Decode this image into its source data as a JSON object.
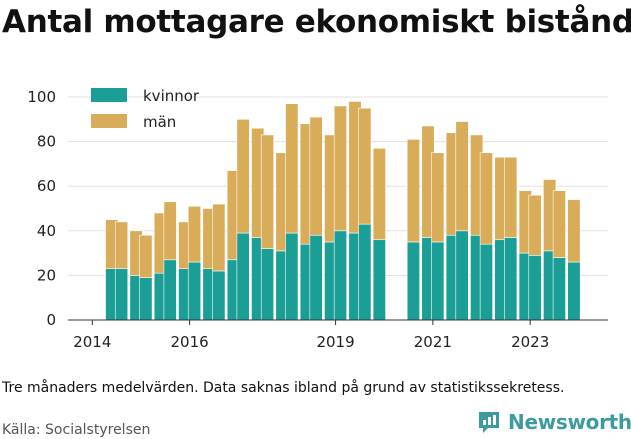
{
  "title": "Antal mottagare ekonomiskt bistånd",
  "footnote": "Tre månaders medelvärden. Data saknas ibland på grund av statistikssekretess.",
  "source": "Källa: Socialstyrelsen",
  "brand": "Newsworthy",
  "colors": {
    "kvinnor": "#1a9e96",
    "man": "#d9ac5a",
    "grid": "#e0e0e0",
    "brand": "#3d9ba0"
  },
  "chart_data": {
    "type": "bar",
    "stacked": true,
    "legend_position": "top-left",
    "grid": true,
    "ylim": [
      0,
      100
    ],
    "yticks": [
      0,
      20,
      40,
      60,
      80,
      100
    ],
    "xticks": [
      "2014",
      "2016",
      "2019",
      "2021",
      "2023"
    ],
    "series": [
      {
        "name": "kvinnor",
        "key": "kvinnor"
      },
      {
        "name": "män",
        "key": "man"
      }
    ],
    "points": [
      {
        "t": 2014.4,
        "kvinnor": 23,
        "man": 22
      },
      {
        "t": 2014.6,
        "kvinnor": 23,
        "man": 21
      },
      {
        "t": 2014.9,
        "kvinnor": 20,
        "man": 20
      },
      {
        "t": 2015.1,
        "kvinnor": 19,
        "man": 19
      },
      {
        "t": 2015.4,
        "kvinnor": 21,
        "man": 27
      },
      {
        "t": 2015.6,
        "kvinnor": 27,
        "man": 26
      },
      {
        "t": 2015.9,
        "kvinnor": 23,
        "man": 21
      },
      {
        "t": 2016.1,
        "kvinnor": 26,
        "man": 25
      },
      {
        "t": 2016.4,
        "kvinnor": 23,
        "man": 27
      },
      {
        "t": 2016.6,
        "kvinnor": 22,
        "man": 30
      },
      {
        "t": 2016.9,
        "kvinnor": 27,
        "man": 40
      },
      {
        "t": 2017.1,
        "kvinnor": 39,
        "man": 51
      },
      {
        "t": 2017.4,
        "kvinnor": 37,
        "man": 49
      },
      {
        "t": 2017.6,
        "kvinnor": 32,
        "man": 51
      },
      {
        "t": 2017.9,
        "kvinnor": 31,
        "man": 44
      },
      {
        "t": 2018.1,
        "kvinnor": 39,
        "man": 58
      },
      {
        "t": 2018.4,
        "kvinnor": 34,
        "man": 54
      },
      {
        "t": 2018.6,
        "kvinnor": 38,
        "man": 53
      },
      {
        "t": 2018.9,
        "kvinnor": 35,
        "man": 48
      },
      {
        "t": 2019.1,
        "kvinnor": 40,
        "man": 56
      },
      {
        "t": 2019.4,
        "kvinnor": 39,
        "man": 59
      },
      {
        "t": 2019.6,
        "kvinnor": 43,
        "man": 52
      },
      {
        "t": 2019.9,
        "kvinnor": 36,
        "man": 41
      },
      {
        "t": 2020.6,
        "kvinnor": 35,
        "man": 46
      },
      {
        "t": 2020.9,
        "kvinnor": 37,
        "man": 50
      },
      {
        "t": 2021.1,
        "kvinnor": 35,
        "man": 40
      },
      {
        "t": 2021.4,
        "kvinnor": 38,
        "man": 46
      },
      {
        "t": 2021.6,
        "kvinnor": 40,
        "man": 49
      },
      {
        "t": 2021.9,
        "kvinnor": 38,
        "man": 45
      },
      {
        "t": 2022.1,
        "kvinnor": 34,
        "man": 41
      },
      {
        "t": 2022.4,
        "kvinnor": 36,
        "man": 37
      },
      {
        "t": 2022.6,
        "kvinnor": 37,
        "man": 36
      },
      {
        "t": 2022.9,
        "kvinnor": 30,
        "man": 28
      },
      {
        "t": 2023.1,
        "kvinnor": 29,
        "man": 27
      },
      {
        "t": 2023.4,
        "kvinnor": 31,
        "man": 32
      },
      {
        "t": 2023.6,
        "kvinnor": 28,
        "man": 30
      },
      {
        "t": 2023.9,
        "kvinnor": 26,
        "man": 28
      }
    ]
  }
}
